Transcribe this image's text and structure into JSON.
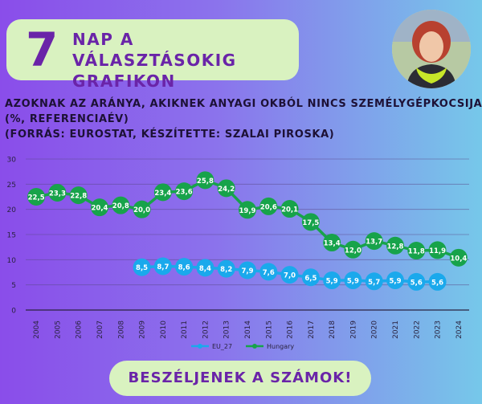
{
  "header": {
    "number": "7",
    "line1": "NAP A VÁLASZTÁSOKIG",
    "line2": "GRAFIKON"
  },
  "subtitle": {
    "line1": "AZOKNAK AZ ARÁNYA, AKIKNEK ANYAGI OKBÓL NINCS SZEMÉLYGÉPKOCSIJA",
    "line2": "(%, REFERENCIAÉV)",
    "line3": "(FORRÁS: EUROSTAT, KÉSZÍTETTE: SZALAI PIROSKA)"
  },
  "cta": "BESZÉLJENEK A SZÁMOK!",
  "colors": {
    "eu": "#1aa9ec",
    "hungary": "#17a34a",
    "accent": "#6a24a8",
    "badge_bg": "#d9f2c0"
  },
  "chart_data": {
    "type": "line",
    "x": [
      "2004",
      "2005",
      "2006",
      "2007",
      "2008",
      "2009",
      "2010",
      "2011",
      "2012",
      "2013",
      "2014",
      "2015",
      "2016",
      "2017",
      "2018",
      "2019",
      "2020",
      "2021",
      "2022",
      "2023",
      "2024"
    ],
    "ylim": [
      0,
      30
    ],
    "yticks": [
      0,
      5,
      10,
      15,
      20,
      25,
      30
    ],
    "grid": true,
    "legend": "bottom",
    "series": [
      {
        "name": "EU_27",
        "values": [
          null,
          null,
          null,
          null,
          null,
          8.5,
          8.7,
          8.6,
          8.4,
          8.2,
          7.9,
          7.6,
          7.0,
          6.5,
          5.9,
          5.9,
          5.7,
          5.9,
          5.6,
          5.6,
          null
        ],
        "labels": [
          null,
          null,
          null,
          null,
          null,
          "8,5",
          "8,7",
          "8,6",
          "8,4",
          "8,2",
          "7,9",
          "7,6",
          "7,0",
          "6,5",
          "5,9",
          "5,9",
          "5,7",
          "5,9",
          "5,6",
          "5,6",
          null
        ]
      },
      {
        "name": "Hungary",
        "values": [
          22.5,
          23.3,
          22.8,
          20.4,
          20.8,
          20.0,
          23.4,
          23.6,
          25.8,
          24.2,
          19.9,
          20.6,
          20.1,
          17.5,
          13.4,
          12.0,
          13.7,
          12.8,
          11.8,
          11.9,
          10.4
        ],
        "labels": [
          "22,5",
          "23,3",
          "22,8",
          "20,4",
          "20,8",
          "20,0",
          "23,4",
          "23,6",
          "25,8",
          "24,2",
          "19,9",
          "20,6",
          "20,1",
          "17,5",
          "13,4",
          "12,0",
          "13,7",
          "12,8",
          "11,8",
          "11,9",
          "10,4"
        ]
      }
    ]
  }
}
